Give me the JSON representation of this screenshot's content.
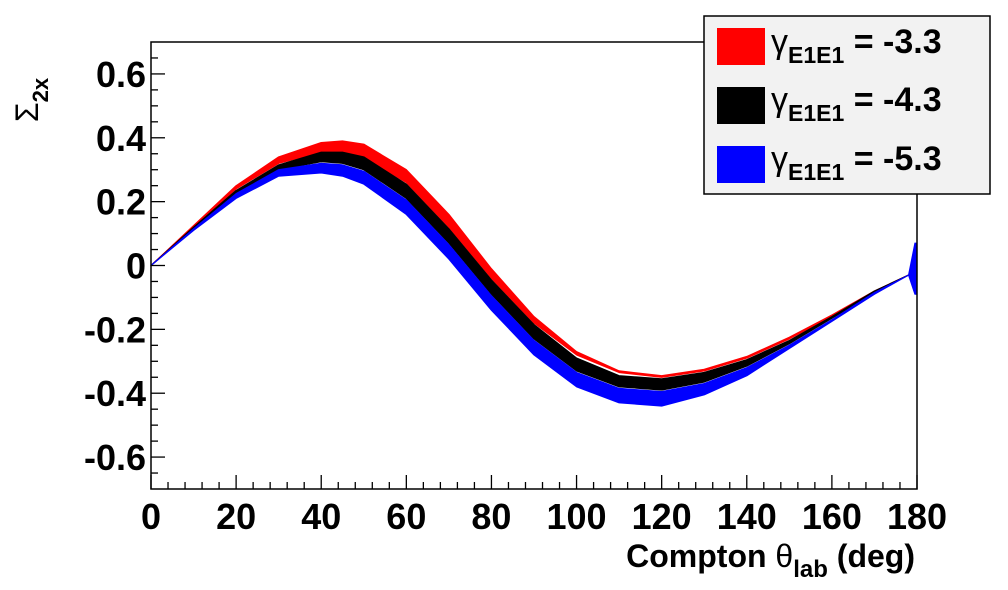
{
  "chart_data": {
    "type": "area",
    "title": "",
    "xlabel": {
      "main": "Compton ",
      "symbol": "θ",
      "sub": "lab",
      "unit": " (deg)"
    },
    "ylabel": {
      "symbol": "Σ",
      "sub": "2x"
    },
    "xlim": [
      0,
      180
    ],
    "ylim": [
      -0.7,
      0.7
    ],
    "xticks": [
      0,
      20,
      40,
      60,
      80,
      100,
      120,
      140,
      160,
      180
    ],
    "xtick_labels": [
      "0",
      "20",
      "40",
      "60",
      "80",
      "100",
      "120",
      "140",
      "160",
      "180"
    ],
    "yticks": [
      -0.6,
      -0.4,
      -0.2,
      0,
      0.2,
      0.4,
      0.6
    ],
    "ytick_labels": [
      "-0.6",
      "-0.4",
      "-0.2",
      "0",
      "0.2",
      "0.4",
      "0.6"
    ],
    "grid": false,
    "legend_position": "top-right",
    "series": [
      {
        "name": "γ_E1E1 = -3.3",
        "legend": {
          "symbol": "γ",
          "sub": "E1E1",
          "value": " = -3.3"
        },
        "color": "#ff0000",
        "x": [
          0,
          10,
          20,
          30,
          40,
          45,
          50,
          60,
          70,
          80,
          90,
          100,
          110,
          120,
          130,
          140,
          150,
          160,
          170,
          178
        ],
        "lower": [
          0,
          0.12,
          0.24,
          0.32,
          0.355,
          0.355,
          0.34,
          0.26,
          0.12,
          -0.04,
          -0.18,
          -0.28,
          -0.335,
          -0.35,
          -0.33,
          -0.29,
          -0.23,
          -0.16,
          -0.08,
          -0.03
        ],
        "upper": [
          0,
          0.125,
          0.25,
          0.34,
          0.385,
          0.39,
          0.38,
          0.3,
          0.16,
          -0.01,
          -0.16,
          -0.27,
          -0.33,
          -0.345,
          -0.325,
          -0.285,
          -0.225,
          -0.155,
          -0.08,
          -0.03
        ]
      },
      {
        "name": "γ_E1E1 = -4.3",
        "legend": {
          "symbol": "γ",
          "sub": "E1E1",
          "value": " = -4.3"
        },
        "color": "#000000",
        "x": [
          0,
          10,
          20,
          30,
          40,
          45,
          50,
          60,
          70,
          80,
          90,
          100,
          110,
          120,
          130,
          140,
          150,
          160,
          170,
          178
        ],
        "lower": [
          0,
          0.115,
          0.225,
          0.3,
          0.325,
          0.32,
          0.3,
          0.21,
          0.07,
          -0.09,
          -0.23,
          -0.33,
          -0.38,
          -0.39,
          -0.365,
          -0.315,
          -0.245,
          -0.165,
          -0.085,
          -0.03
        ],
        "upper": [
          0,
          0.12,
          0.235,
          0.315,
          0.355,
          0.355,
          0.34,
          0.255,
          0.115,
          -0.045,
          -0.185,
          -0.29,
          -0.345,
          -0.355,
          -0.335,
          -0.295,
          -0.235,
          -0.16,
          -0.08,
          -0.03
        ]
      },
      {
        "name": "γ_E1E1 = -5.3",
        "legend": {
          "symbol": "γ",
          "sub": "E1E1",
          "value": " = -5.3"
        },
        "color": "#0000ff",
        "x": [
          0,
          10,
          20,
          30,
          40,
          45,
          50,
          60,
          70,
          80,
          90,
          100,
          110,
          120,
          130,
          140,
          150,
          160,
          170,
          178
        ],
        "lower": [
          0,
          0.11,
          0.21,
          0.28,
          0.29,
          0.28,
          0.255,
          0.16,
          0.02,
          -0.14,
          -0.28,
          -0.38,
          -0.43,
          -0.44,
          -0.405,
          -0.345,
          -0.26,
          -0.175,
          -0.09,
          -0.03
        ],
        "upper": [
          0,
          0.115,
          0.225,
          0.3,
          0.32,
          0.315,
          0.295,
          0.205,
          0.065,
          -0.095,
          -0.235,
          -0.335,
          -0.385,
          -0.395,
          -0.37,
          -0.32,
          -0.25,
          -0.17,
          -0.085,
          -0.03
        ]
      }
    ],
    "endpoint_spike": {
      "x": 180,
      "ymin": -0.09,
      "ymax": 0.07,
      "color": "#0000ff"
    }
  }
}
